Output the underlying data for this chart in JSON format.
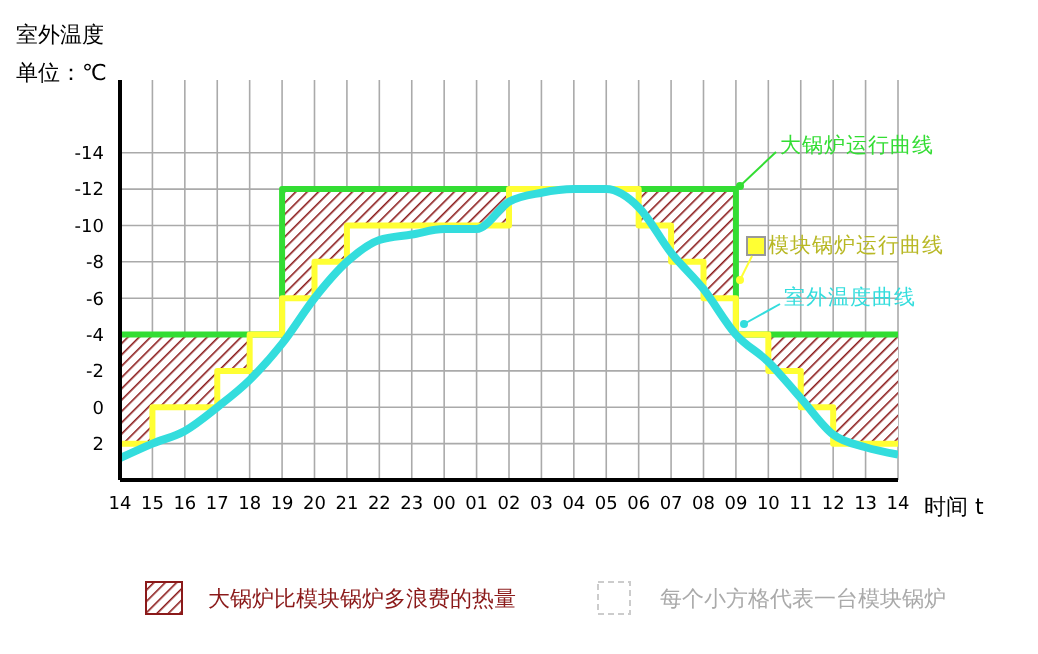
{
  "chart_data": {
    "type": "line",
    "ylabel": "室外温度单位：℃",
    "xlabel": "时间 t",
    "categories": [
      "14",
      "15",
      "16",
      "17",
      "18",
      "19",
      "20",
      "21",
      "22",
      "23",
      "00",
      "01",
      "02",
      "03",
      "04",
      "05",
      "06",
      "07",
      "08",
      "09",
      "10",
      "11",
      "12",
      "13",
      "14"
    ],
    "ylim": [
      4,
      -18
    ],
    "yticks": [
      -14,
      -12,
      -10,
      -8,
      -6,
      -4,
      -2,
      0,
      2
    ],
    "grid": true,
    "series": [
      {
        "name": "大锅炉运行曲线",
        "type": "step",
        "color": "#33dd33",
        "values": [
          -4,
          -4,
          -4,
          -4,
          -4,
          -12,
          -12,
          -12,
          -12,
          -12,
          -12,
          -12,
          -12,
          -12,
          -12,
          -12,
          -12,
          -12,
          -12,
          -4,
          -4,
          -4,
          -4,
          -4,
          -4
        ],
        "lower": [
          2,
          0,
          0,
          -2,
          -4,
          -6,
          -8,
          -10,
          -10,
          -10,
          -10,
          -10,
          -12,
          -12,
          -12,
          -12,
          -10,
          -8,
          -6,
          -4,
          -2,
          0,
          2,
          2,
          2
        ],
        "upper": [
          -4,
          -4,
          -4,
          -4,
          -4,
          -12,
          -12,
          -12,
          -12,
          -12,
          -12,
          -12,
          -12,
          -12,
          -12,
          -12,
          -12,
          -12,
          -12,
          -4,
          -4,
          -4,
          -4,
          -4,
          -4
        ]
      },
      {
        "name": "模块锅炉运行曲线",
        "type": "step",
        "color": "#ffff33",
        "values": [
          2,
          0,
          0,
          -2,
          -4,
          -6,
          -8,
          -10,
          -10,
          -10,
          -10,
          -10,
          -12,
          -12,
          -12,
          -12,
          -10,
          -8,
          -6,
          -4,
          -2,
          0,
          2,
          2,
          2
        ]
      },
      {
        "name": "室外温度曲线",
        "color": "#33dddd",
        "values": [
          2.8,
          2,
          1.3,
          0,
          -1.5,
          -3.5,
          -6,
          -8,
          -9.2,
          -9.5,
          -9.8,
          -9.8,
          -11.3,
          -11.8,
          -12,
          -12,
          -11,
          -8.5,
          -6.5,
          -4,
          -2.5,
          -0.5,
          1.5,
          2.2,
          2.6
        ]
      }
    ],
    "annotations": [
      "大锅炉比模块锅炉多浪费的热量",
      "每个小方格代表一台模块锅炉"
    ]
  }
}
